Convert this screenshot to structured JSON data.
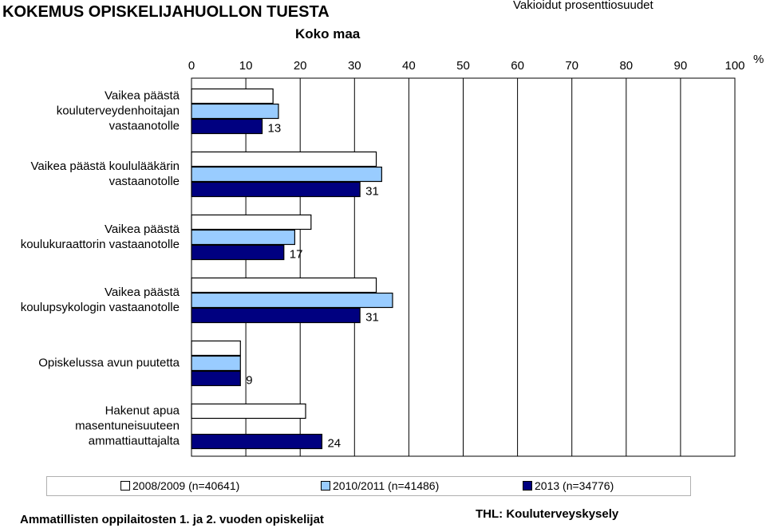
{
  "header": {
    "title": "KOKEMUS OPISKELIJAHUOLLON TUESTA",
    "subtitle": "Koko maa",
    "note": "Vakioidut prosenttiosuudet"
  },
  "footer": {
    "left": "Ammatillisten oppilaitosten 1. ja 2. vuoden opiskelijat",
    "right": "THL: Kouluterveyskysely"
  },
  "chart_data": {
    "type": "bar",
    "orientation": "horizontal",
    "xlim": [
      0,
      100
    ],
    "xticks": [
      0,
      10,
      20,
      30,
      40,
      50,
      60,
      70,
      80,
      90,
      100
    ],
    "xunit": "%",
    "grid": true,
    "legend_position": "bottom",
    "categories": [
      "Vaikea päästä kouluterveydenhoitajan vastaanotolle",
      "Vaikea päästä koululääkärin vastaanotolle",
      "Vaikea päästä koulukuraattorin vastaanotolle",
      "Vaikea päästä koulupsykologin vastaanotolle",
      "Opiskelussa avun puutetta",
      "Hakenut apua masentuneisuuteen ammattiauttajalta"
    ],
    "category_lines": [
      [
        "Vaikea päästä",
        "kouluterveydenhoitajan",
        "vastaanotolle"
      ],
      [
        "Vaikea päästä koululääkärin",
        "vastaanotolle"
      ],
      [
        "Vaikea päästä",
        "koulukuraattorin vastaanotolle"
      ],
      [
        "Vaikea päästä",
        "koulupsykologin vastaanotolle"
      ],
      [
        "Opiskelussa avun puutetta"
      ],
      [
        "Hakenut apua",
        "masentuneisuuteen",
        "ammattiauttajalta"
      ]
    ],
    "series": [
      {
        "name": "2008/2009 (n=40641)",
        "color": "#ffffff",
        "values": [
          15,
          34,
          22,
          34,
          9,
          21
        ]
      },
      {
        "name": "2010/2011 (n=41486)",
        "color": "#99ccff",
        "values": [
          16,
          35,
          19,
          37,
          9,
          null
        ]
      },
      {
        "name": "2013 (n=34776)",
        "color": "#000080",
        "values": [
          13,
          31,
          17,
          31,
          9,
          24
        ]
      }
    ],
    "data_labels": [
      13,
      31,
      17,
      31,
      9,
      24
    ]
  }
}
